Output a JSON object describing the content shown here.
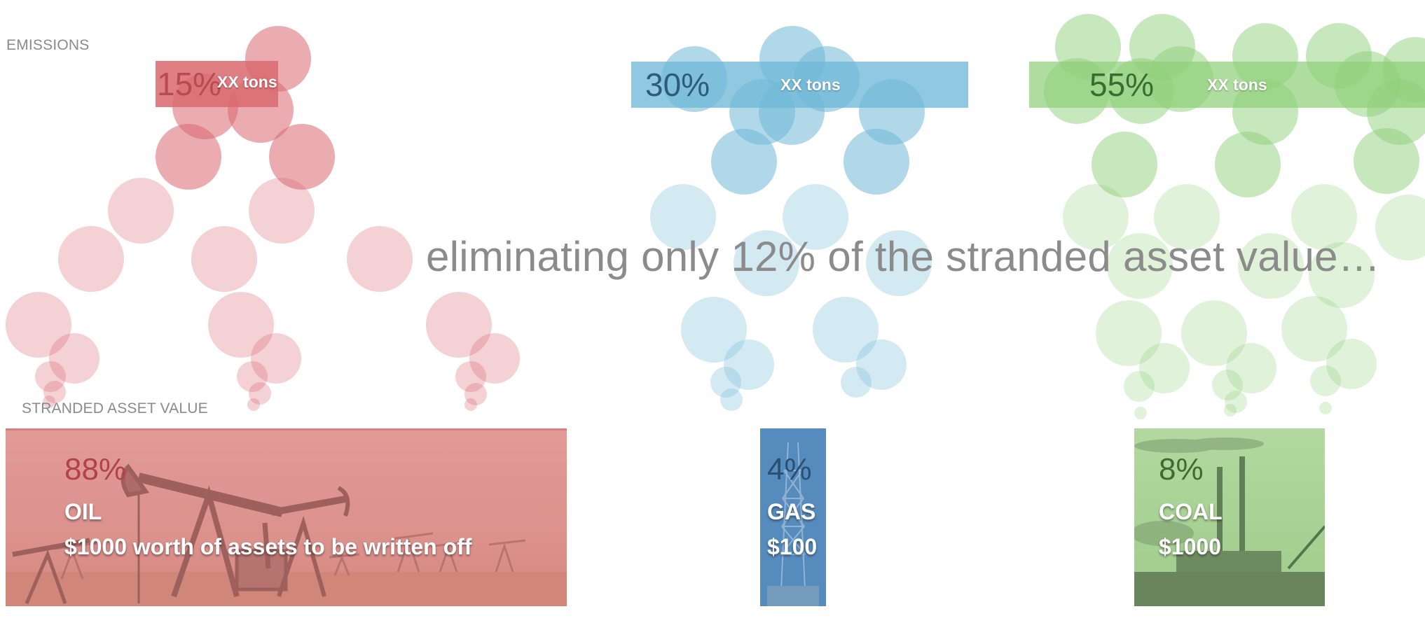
{
  "emissions": {
    "label": "EMISSIONS",
    "items": [
      {
        "id": "oil",
        "pct": "15%",
        "tons": "XX tons",
        "color": "#d9686f",
        "pct_color": "#b84a52"
      },
      {
        "id": "gas",
        "pct": "30%",
        "tons": "XX tons",
        "color": "#6fb8d7",
        "pct_color": "#2f5b7a"
      },
      {
        "id": "coal",
        "pct": "55%",
        "tons": "XX tons",
        "color": "#8fd07a",
        "pct_color": "#3a6b30"
      }
    ]
  },
  "headline": "eliminating only 12% of the stranded asset value…",
  "stranded": {
    "label": "STRANDED ASSET VALUE",
    "items": [
      {
        "id": "oil",
        "pct": "88%",
        "name": "OIL",
        "value": "$1000 worth of assets to be written off",
        "overlay": "#d98080",
        "pct_color": "#b0424a",
        "picture": "oil-pumpjacks-photo"
      },
      {
        "id": "gas",
        "pct": "4%",
        "name": "GAS",
        "value": "$100",
        "overlay": "#4a86b8",
        "pct_color": "#2a4f73",
        "picture": "gas-drilling-rig-photo"
      },
      {
        "id": "coal",
        "pct": "8%",
        "name": "COAL",
        "value": "$1000",
        "overlay": "#9ecf8c",
        "pct_color": "#3c6b33",
        "picture": "coal-power-plant-photo"
      }
    ]
  },
  "colors": {
    "label_gray": "#8a8a8a",
    "headline_gray": "#8b8b8b",
    "oil": "#d9686f",
    "gas": "#6fb8d7",
    "coal": "#8fd07a"
  }
}
